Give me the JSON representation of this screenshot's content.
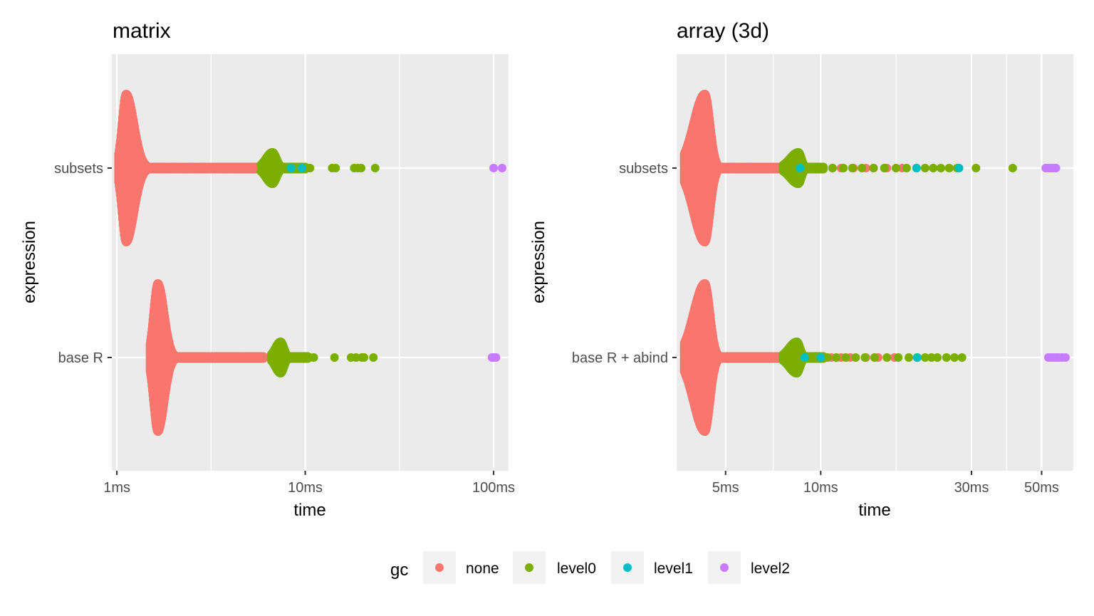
{
  "colors": {
    "none": "#F8766D",
    "level0": "#7CAE00",
    "level1": "#00BFC4",
    "level2": "#C77CFF",
    "panel_bg": "#EBEBEB",
    "grid": "#FFFFFF",
    "tick_text": "#4D4D4D"
  },
  "chart_data": [
    {
      "type": "scatter",
      "title": "matrix",
      "xlabel": "time",
      "ylabel": "expression",
      "x_scale": "log10",
      "x_unit": "ms",
      "xlim": [
        0.94,
        120
      ],
      "x_ticks": [
        {
          "value": 1,
          "label": "1ms"
        },
        {
          "value": 10,
          "label": "10ms"
        },
        {
          "value": 100,
          "label": "100ms"
        }
      ],
      "x_minor_ticks": [
        3.162,
        31.62
      ],
      "categories": [
        "subsets",
        "base R"
      ],
      "distributions": [
        {
          "category": "subsets",
          "gc": "none",
          "peak_ms": 1.12,
          "range_ms": [
            1.02,
            5.5
          ]
        },
        {
          "category": "base R",
          "gc": "none",
          "peak_ms": 1.65,
          "range_ms": [
            1.5,
            6.0
          ]
        },
        {
          "category": "subsets",
          "gc": "level0",
          "peak_ms": 6.7,
          "range_ms": [
            5.8,
            10.0
          ]
        },
        {
          "category": "base R",
          "gc": "level0",
          "peak_ms": 7.4,
          "range_ms": [
            6.6,
            10.3
          ]
        }
      ],
      "series": [
        {
          "name": "none",
          "category": "subsets",
          "x": [
            4.3,
            4.6,
            4.9,
            5.1,
            5.3
          ]
        },
        {
          "name": "none",
          "category": "base R",
          "x": [
            4.1,
            4.4,
            4.8,
            5.2,
            5.7
          ]
        },
        {
          "name": "level0",
          "category": "subsets",
          "x": [
            10.3,
            10.6,
            13.9,
            14.5,
            18.2,
            19.0,
            19.8,
            23.5
          ]
        },
        {
          "name": "level0",
          "category": "base R",
          "x": [
            10.6,
            11.1,
            14.3,
            17.5,
            18.6,
            20.0,
            20.5,
            23.0
          ]
        },
        {
          "name": "level1",
          "category": "subsets",
          "x": [
            8.4,
            9.6
          ]
        },
        {
          "name": "level2",
          "category": "subsets",
          "x": [
            100,
            111
          ]
        },
        {
          "name": "level2",
          "category": "base R",
          "x": [
            98,
            100,
            103
          ]
        }
      ]
    },
    {
      "type": "scatter",
      "title": "array (3d)",
      "xlabel": "time",
      "ylabel": "expression",
      "x_scale": "log10",
      "x_unit": "ms",
      "xlim": [
        3.5,
        63
      ],
      "x_ticks": [
        {
          "value": 5,
          "label": "5ms"
        },
        {
          "value": 10,
          "label": "10ms"
        },
        {
          "value": 30,
          "label": "30ms"
        },
        {
          "value": 50,
          "label": "50ms"
        }
      ],
      "x_minor_ticks": [
        7.071,
        17.32,
        38.73
      ],
      "categories": [
        "subsets",
        "base R + abind"
      ],
      "distributions": [
        {
          "category": "subsets",
          "gc": "none",
          "peak_ms": 4.3,
          "range_ms": [
            3.7,
            8.0
          ]
        },
        {
          "category": "base R + abind",
          "gc": "none",
          "peak_ms": 4.3,
          "range_ms": [
            3.7,
            8.0
          ]
        },
        {
          "category": "subsets",
          "gc": "level0",
          "peak_ms": 8.5,
          "range_ms": [
            7.6,
            10.2
          ]
        },
        {
          "category": "base R + abind",
          "gc": "level0",
          "peak_ms": 8.4,
          "range_ms": [
            7.6,
            10.2
          ]
        }
      ],
      "series": [
        {
          "name": "none",
          "category": "subsets",
          "x": [
            10.9,
            11.6,
            12.7,
            13.9,
            14.7,
            16.2,
            18.1
          ]
        },
        {
          "name": "none",
          "category": "base R + abind",
          "x": [
            10.8,
            11.6,
            12.4,
            13.9,
            15.2,
            17.1
          ]
        },
        {
          "name": "level0",
          "category": "subsets",
          "x": [
            10.2,
            10.9,
            11.8,
            12.6,
            13.5,
            14.7,
            15.9,
            17.3,
            18.7,
            20.1,
            21.4,
            22.7,
            24.0,
            25.5,
            27.0,
            31.0,
            40.5
          ]
        },
        {
          "name": "level0",
          "category": "base R + abind",
          "x": [
            10.5,
            11.2,
            12.0,
            12.9,
            13.8,
            14.8,
            16.2,
            17.6,
            19.0,
            20.2,
            21.4,
            22.4,
            23.4,
            25.0,
            26.5,
            28.0
          ]
        },
        {
          "name": "level1",
          "category": "subsets",
          "x": [
            8.6,
            20.1,
            27.4
          ]
        },
        {
          "name": "level1",
          "category": "base R + abind",
          "x": [
            8.9,
            10.0,
            20.2
          ]
        },
        {
          "name": "level2",
          "category": "subsets",
          "x": [
            51.5,
            52.5,
            53.3,
            54.0,
            54.8,
            55.5
          ]
        },
        {
          "name": "level2",
          "category": "base R + abind",
          "x": [
            52.5,
            53.5,
            54.5,
            55.5,
            56.5,
            58.0,
            59.5
          ]
        }
      ]
    }
  ],
  "legend": {
    "title": "gc",
    "placement": "bottom",
    "items": [
      {
        "key": "none",
        "label": "none"
      },
      {
        "key": "level0",
        "label": "level0"
      },
      {
        "key": "level1",
        "label": "level1"
      },
      {
        "key": "level2",
        "label": "level2"
      }
    ]
  }
}
